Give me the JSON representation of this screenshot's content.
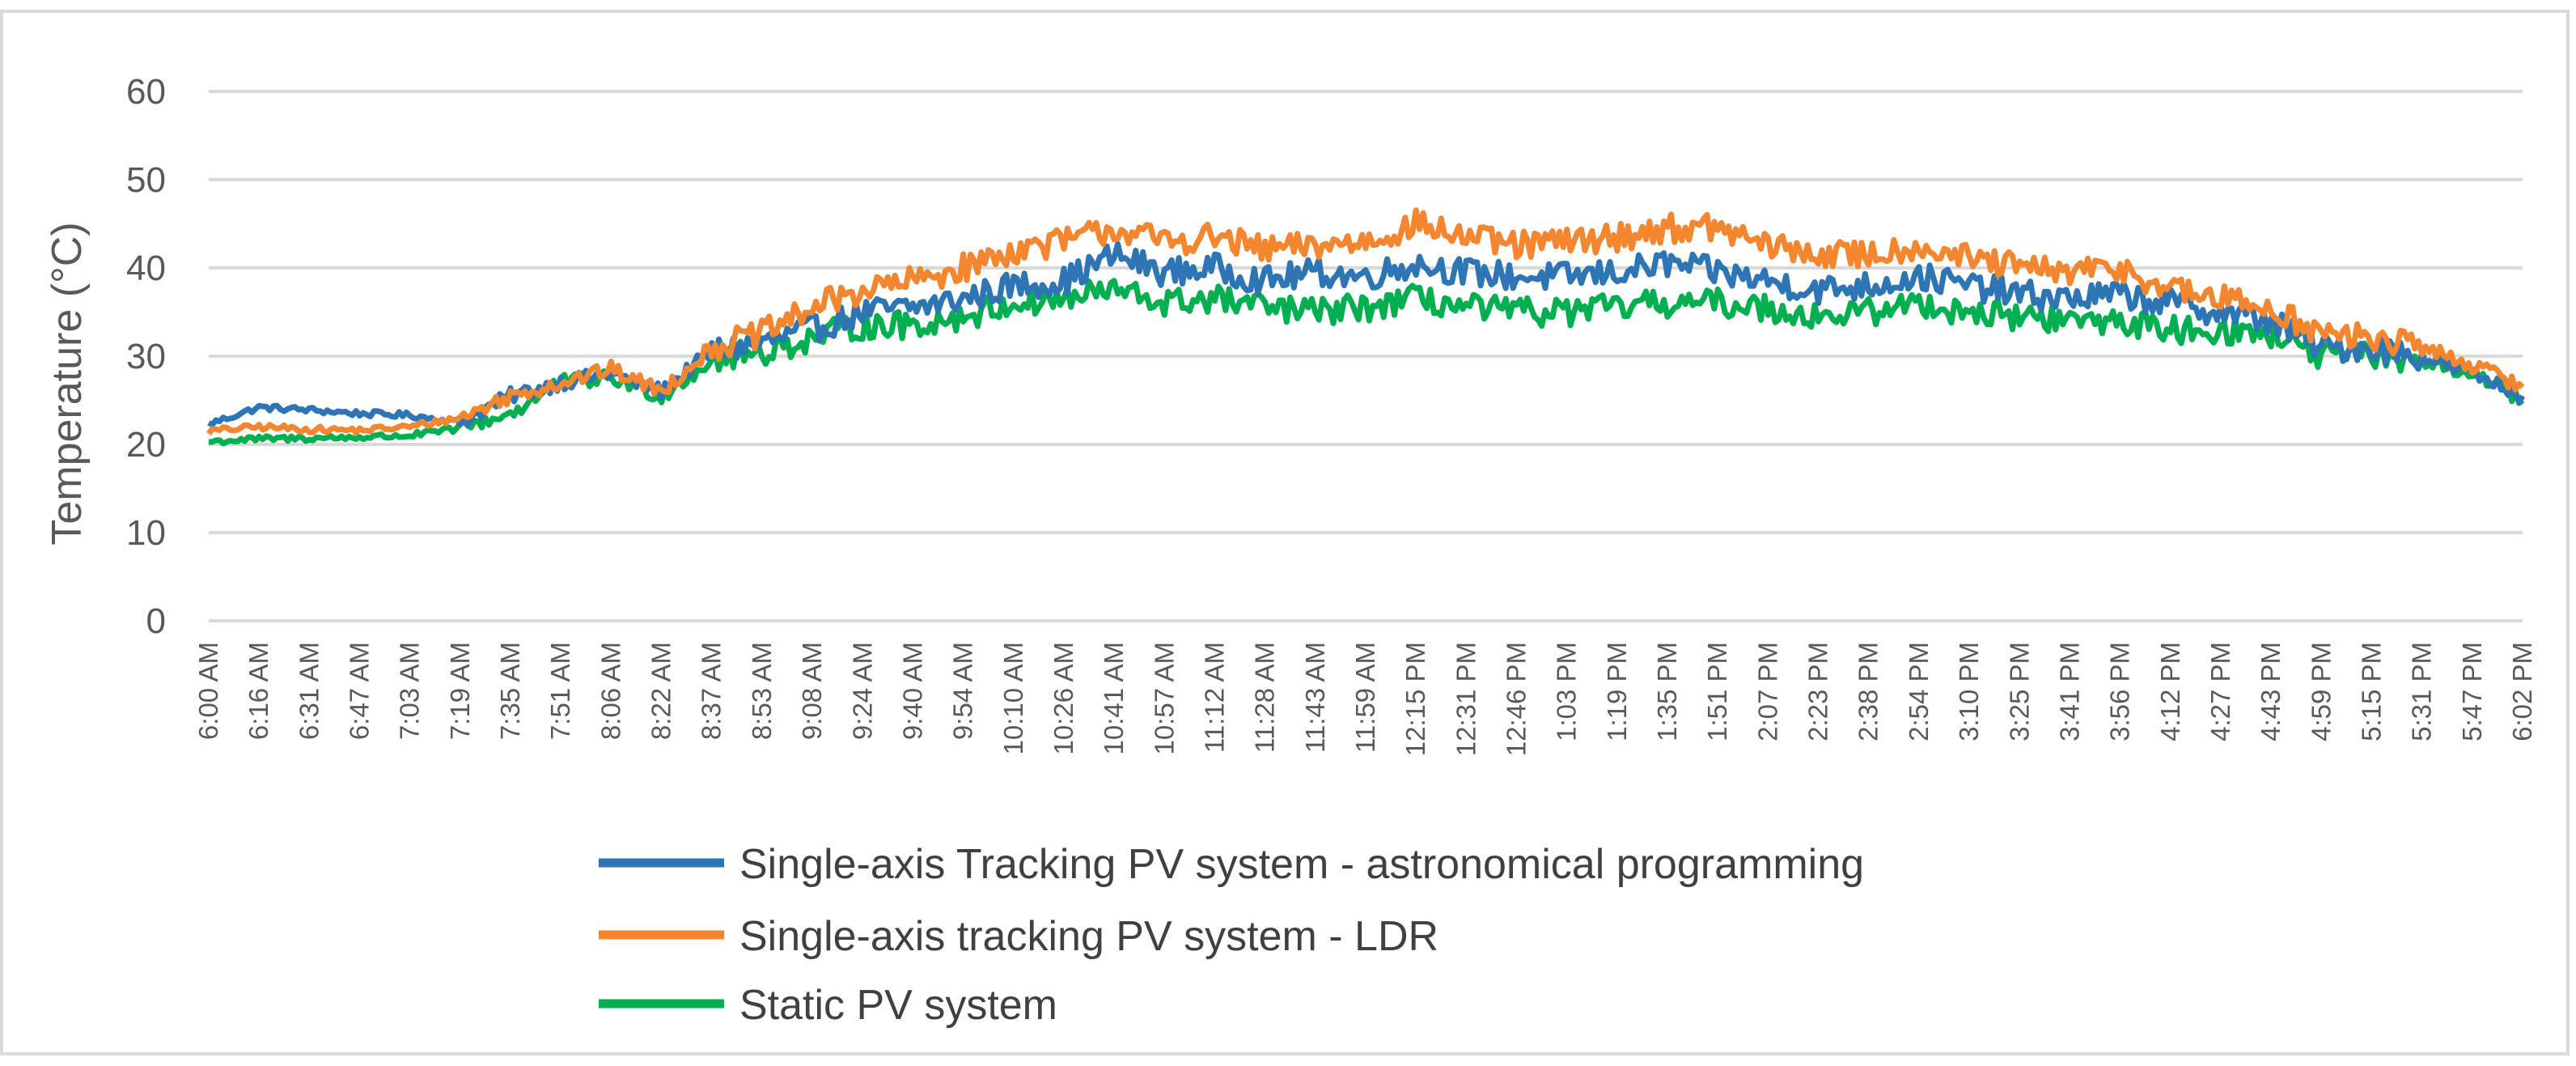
{
  "chart_data": {
    "type": "line",
    "title": "",
    "xlabel": "",
    "ylabel": "Temperature (°C)",
    "ylim": [
      0,
      60
    ],
    "yticks": [
      0,
      10,
      20,
      30,
      40,
      50,
      60
    ],
    "grid": true,
    "legend_position": "bottom",
    "x_tick_labels": [
      "6:00 AM",
      "6:16 AM",
      "6:31 AM",
      "6:47 AM",
      "7:03 AM",
      "7:19 AM",
      "7:35 AM",
      "7:51 AM",
      "8:06 AM",
      "8:22 AM",
      "8:37 AM",
      "8:53 AM",
      "9:08 AM",
      "9:24 AM",
      "9:40 AM",
      "9:54 AM",
      "10:10 AM",
      "10:26 AM",
      "10:41 AM",
      "10:57 AM",
      "11:12 AM",
      "11:28 AM",
      "11:43 AM",
      "11:59 AM",
      "12:15 PM",
      "12:31 PM",
      "12:46 PM",
      "1:03 PM",
      "1:19 PM",
      "1:35 PM",
      "1:51 PM",
      "2:07 PM",
      "2:23 PM",
      "2:38 PM",
      "2:54 PM",
      "3:10 PM",
      "3:25 PM",
      "3:41 PM",
      "3:56 PM",
      "4:12 PM",
      "4:27 PM",
      "4:43 PM",
      "4:59 PM",
      "5:15 PM",
      "5:31 PM",
      "5:47 PM",
      "6:02 PM"
    ],
    "series": [
      {
        "name": "Single-axis Tracking PV system - astronomical programming",
        "color": "#2E75B6",
        "values": [
          22.3,
          24.2,
          23.9,
          23.5,
          23.3,
          22.5,
          25.5,
          27.0,
          28.0,
          26.0,
          30.5,
          31.5,
          33.0,
          35.0,
          35.5,
          36.5,
          38.0,
          38.5,
          41.5,
          39.5,
          40.0,
          38.5,
          39.5,
          39.0,
          40.5,
          39.5,
          39.0,
          39.0,
          39.5,
          40.5,
          39.5,
          38.5,
          37.5,
          38.0,
          39.0,
          38.0,
          37.0,
          36.5,
          37.0,
          36.0,
          35.0,
          34.0,
          31.0,
          31.0,
          30.0,
          28.0,
          25.5
        ]
      },
      {
        "name": "Single-axis tracking PV system - LDR",
        "color": "#F4862F",
        "values": [
          21.5,
          22.0,
          21.7,
          21.6,
          22.0,
          23.0,
          25.5,
          27.0,
          28.5,
          26.0,
          31.0,
          32.5,
          35.5,
          37.5,
          38.5,
          40.0,
          42.0,
          43.0,
          44.5,
          43.0,
          43.5,
          42.0,
          42.5,
          43.0,
          45.0,
          43.5,
          42.5,
          43.0,
          43.5,
          44.5,
          44.5,
          42.5,
          41.5,
          41.5,
          42.5,
          41.0,
          40.0,
          39.5,
          40.0,
          37.5,
          36.5,
          35.5,
          32.5,
          32.0,
          31.0,
          29.0,
          26.5
        ]
      },
      {
        "name": "Static PV system",
        "color": "#00B050",
        "values": [
          20.3,
          20.6,
          20.7,
          20.8,
          21.0,
          21.8,
          23.5,
          27.0,
          27.5,
          25.5,
          29.5,
          30.5,
          32.0,
          33.5,
          33.5,
          34.5,
          36.0,
          36.5,
          37.5,
          36.0,
          36.5,
          35.5,
          35.0,
          35.5,
          36.5,
          35.5,
          35.0,
          35.0,
          35.5,
          36.0,
          36.0,
          35.5,
          34.5,
          35.0,
          36.0,
          35.0,
          34.5,
          34.0,
          34.0,
          33.0,
          33.0,
          32.5,
          30.0,
          30.0,
          29.5,
          28.0,
          25.0
        ]
      }
    ]
  }
}
